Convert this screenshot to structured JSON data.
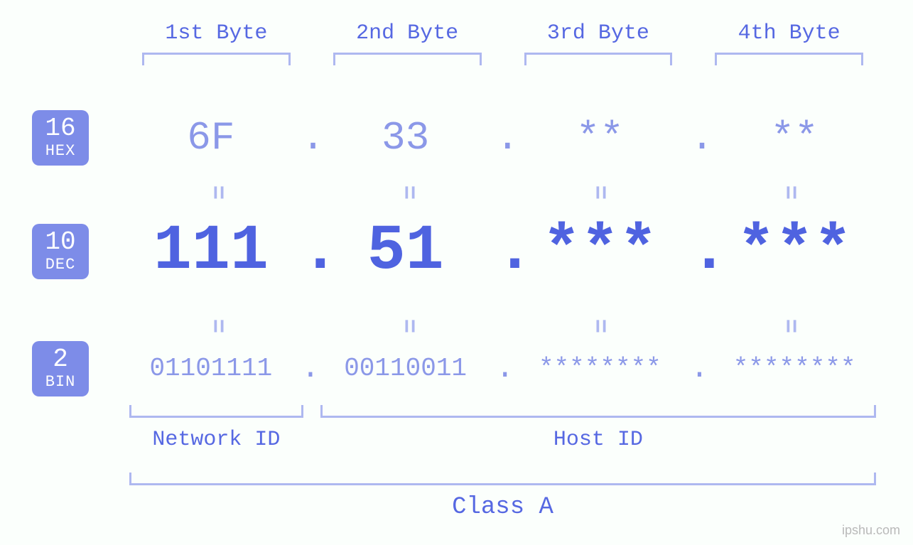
{
  "colors": {
    "background": "#fbfffc",
    "text_primary": "#5668e2",
    "text_light": "#8b98e8",
    "bracket": "#aeb8f0",
    "badge_bg": "#7d8ce8",
    "badge_fg": "#ffffff",
    "dec_color": "#4f63e0",
    "watermark": "#b9b9b9"
  },
  "fonts": {
    "mono": "Courier New, Courier, monospace",
    "header_size": 30,
    "hex_size": 56,
    "dec_size": 90,
    "bin_size": 36,
    "equals_size": 34,
    "badge_big": 36,
    "badge_small": 22,
    "class_size": 34
  },
  "byte_headers": [
    "1st Byte",
    "2nd Byte",
    "3rd Byte",
    "4th Byte"
  ],
  "bases": {
    "hex": {
      "base_num": "16",
      "base_label": "HEX",
      "values": [
        "6F",
        "33",
        "**",
        "**"
      ]
    },
    "dec": {
      "base_num": "10",
      "base_label": "DEC",
      "values": [
        "111",
        "51",
        "***",
        "***"
      ]
    },
    "bin": {
      "base_num": "2",
      "base_label": "BIN",
      "values": [
        "01101111",
        "00110011",
        "********",
        "********"
      ]
    }
  },
  "separator": ".",
  "equals_glyph": "=",
  "id_labels": {
    "network": "Network ID",
    "host": "Host ID"
  },
  "class_label": "Class A",
  "watermark": "ipshu.com"
}
